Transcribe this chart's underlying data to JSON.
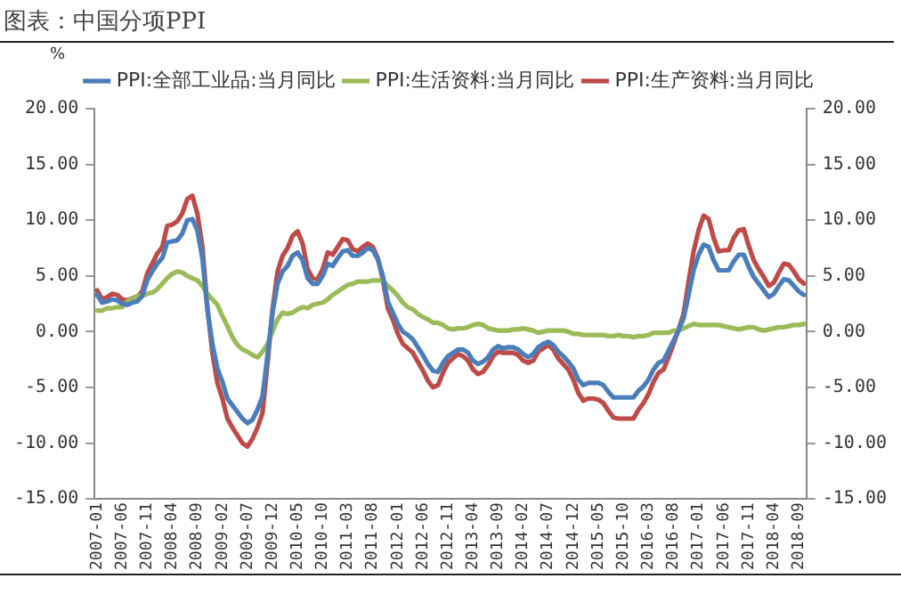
{
  "chart_data": {
    "type": "line",
    "title": "图表：中国分项PPI",
    "ylabel": "%",
    "categories": [
      "2007-01",
      null,
      null,
      null,
      null,
      "2007-06",
      null,
      null,
      null,
      null,
      "2007-11",
      null,
      null,
      null,
      null,
      "2008-04",
      null,
      null,
      null,
      null,
      "2008-09",
      null,
      null,
      null,
      null,
      "2009-02",
      null,
      null,
      null,
      null,
      "2009-07",
      null,
      null,
      null,
      null,
      "2009-12",
      null,
      null,
      null,
      null,
      "2010-05",
      null,
      null,
      null,
      null,
      "2010-10",
      null,
      null,
      null,
      null,
      "2011-03",
      null,
      null,
      null,
      null,
      "2011-08",
      null,
      null,
      null,
      null,
      "2012-01",
      null,
      null,
      null,
      null,
      "2012-06",
      null,
      null,
      null,
      null,
      "2012-11",
      null,
      null,
      null,
      null,
      "2013-04",
      null,
      null,
      null,
      null,
      "2013-09",
      null,
      null,
      null,
      null,
      "2014-02",
      null,
      null,
      null,
      null,
      "2014-07",
      null,
      null,
      null,
      null,
      "2014-12",
      null,
      null,
      null,
      null,
      "2015-05",
      null,
      null,
      null,
      null,
      "2015-10",
      null,
      null,
      null,
      null,
      "2016-03",
      null,
      null,
      null,
      null,
      "2016-08",
      null,
      null,
      null,
      null,
      "2017-01",
      null,
      null,
      null,
      null,
      "2017-06",
      null,
      null,
      null,
      null,
      "2017-11",
      null,
      null,
      null,
      null,
      "2018-04",
      null,
      null,
      null,
      null,
      "2018-09",
      null
    ],
    "series": [
      {
        "name": "PPI:全部工业品:当月同比",
        "color": "#4a7ebb",
        "values": [
          3.3,
          2.6,
          2.7,
          2.9,
          2.8,
          2.5,
          2.4,
          2.6,
          2.7,
          3.2,
          4.6,
          5.4,
          6.1,
          6.6,
          8.0,
          8.1,
          8.2,
          8.8,
          10.0,
          10.1,
          9.1,
          6.6,
          2.0,
          -1.1,
          -3.3,
          -4.5,
          -6.0,
          -6.6,
          -7.2,
          -7.8,
          -8.2,
          -7.9,
          -7.0,
          -5.8,
          -2.1,
          1.7,
          4.3,
          5.4,
          5.9,
          6.8,
          7.1,
          6.4,
          4.8,
          4.3,
          4.3,
          5.0,
          6.1,
          5.9,
          6.6,
          7.2,
          7.3,
          6.8,
          6.8,
          7.1,
          7.5,
          7.3,
          6.5,
          5.0,
          2.7,
          1.7,
          0.7,
          0.0,
          -0.3,
          -0.7,
          -1.4,
          -2.1,
          -2.9,
          -3.5,
          -3.6,
          -2.8,
          -2.2,
          -1.9,
          -1.6,
          -1.6,
          -1.9,
          -2.6,
          -2.9,
          -2.7,
          -2.3,
          -1.6,
          -1.3,
          -1.5,
          -1.4,
          -1.4,
          -1.6,
          -2.0,
          -2.3,
          -2.0,
          -1.4,
          -1.1,
          -0.9,
          -1.2,
          -1.8,
          -2.2,
          -2.7,
          -3.3,
          -4.3,
          -4.8,
          -4.6,
          -4.6,
          -4.6,
          -4.8,
          -5.4,
          -5.9,
          -5.9,
          -5.9,
          -5.9,
          -5.9,
          -5.3,
          -4.9,
          -4.3,
          -3.4,
          -2.8,
          -2.6,
          -1.7,
          -0.8,
          0.1,
          1.2,
          3.3,
          5.5,
          6.9,
          7.8,
          7.6,
          6.4,
          5.5,
          5.5,
          5.5,
          6.3,
          6.9,
          6.9,
          5.8,
          4.9,
          4.3,
          3.7,
          3.1,
          3.4,
          4.1,
          4.7,
          4.6,
          4.1,
          3.6,
          3.3
        ]
      },
      {
        "name": "PPI:生活资料:当月同比",
        "color": "#9bbb59",
        "values": [
          1.9,
          1.9,
          2.1,
          2.1,
          2.2,
          2.2,
          2.7,
          3.0,
          3.2,
          3.2,
          3.4,
          3.5,
          3.8,
          4.3,
          4.8,
          5.2,
          5.4,
          5.3,
          5.0,
          4.8,
          4.6,
          4.1,
          3.4,
          2.9,
          2.4,
          1.4,
          0.5,
          -0.5,
          -1.2,
          -1.6,
          -1.8,
          -2.1,
          -2.3,
          -1.8,
          -1.1,
          0.0,
          1.1,
          1.7,
          1.6,
          1.7,
          2.0,
          2.2,
          2.1,
          2.4,
          2.5,
          2.6,
          2.9,
          3.3,
          3.6,
          3.9,
          4.2,
          4.3,
          4.5,
          4.5,
          4.5,
          4.6,
          4.6,
          4.6,
          4.1,
          3.7,
          3.2,
          2.6,
          2.2,
          2.0,
          1.6,
          1.3,
          1.1,
          0.8,
          0.8,
          0.6,
          0.3,
          0.2,
          0.3,
          0.3,
          0.4,
          0.6,
          0.7,
          0.6,
          0.3,
          0.2,
          0.1,
          0.1,
          0.1,
          0.2,
          0.2,
          0.3,
          0.2,
          0.1,
          -0.1,
          0.0,
          0.1,
          0.1,
          0.1,
          0.1,
          0.0,
          -0.2,
          -0.2,
          -0.3,
          -0.3,
          -0.3,
          -0.3,
          -0.3,
          -0.4,
          -0.4,
          -0.3,
          -0.4,
          -0.4,
          -0.5,
          -0.4,
          -0.4,
          -0.3,
          -0.1,
          -0.1,
          -0.1,
          -0.1,
          0.1,
          0.1,
          0.3,
          0.5,
          0.7,
          0.6,
          0.6,
          0.6,
          0.6,
          0.6,
          0.5,
          0.4,
          0.3,
          0.2,
          0.3,
          0.4,
          0.4,
          0.2,
          0.1,
          0.2,
          0.3,
          0.4,
          0.4,
          0.5,
          0.6,
          0.6,
          0.7
        ]
      },
      {
        "name": "PPI:生产资料:当月同比",
        "color": "#be4b48",
        "values": [
          3.7,
          2.9,
          3.1,
          3.4,
          3.3,
          2.9,
          2.8,
          3.0,
          3.1,
          3.6,
          5.2,
          6.1,
          7.0,
          7.6,
          9.5,
          9.6,
          9.9,
          10.6,
          11.9,
          12.2,
          10.6,
          7.6,
          2.2,
          -1.9,
          -4.6,
          -6.0,
          -7.8,
          -8.6,
          -9.3,
          -10.0,
          -10.3,
          -9.6,
          -8.6,
          -7.3,
          -2.8,
          2.0,
          5.4,
          6.8,
          7.5,
          8.6,
          9.0,
          7.9,
          5.6,
          4.8,
          4.7,
          5.6,
          7.1,
          6.9,
          7.6,
          8.3,
          8.2,
          7.4,
          7.2,
          7.6,
          7.9,
          7.6,
          6.6,
          4.7,
          2.1,
          1.1,
          -0.2,
          -1.1,
          -1.5,
          -1.9,
          -2.7,
          -3.5,
          -4.4,
          -5.0,
          -4.8,
          -3.7,
          -2.8,
          -2.4,
          -2.0,
          -2.2,
          -2.6,
          -3.4,
          -3.8,
          -3.6,
          -3.0,
          -2.2,
          -1.8,
          -1.9,
          -1.9,
          -1.9,
          -2.1,
          -2.6,
          -2.8,
          -2.6,
          -1.8,
          -1.5,
          -1.2,
          -1.6,
          -2.4,
          -2.9,
          -3.4,
          -4.3,
          -5.5,
          -6.2,
          -6.0,
          -6.0,
          -6.1,
          -6.4,
          -7.1,
          -7.7,
          -7.8,
          -7.8,
          -7.8,
          -7.8,
          -7.0,
          -6.4,
          -5.6,
          -4.5,
          -3.7,
          -3.4,
          -2.3,
          -1.1,
          0.2,
          1.6,
          4.5,
          7.2,
          9.1,
          10.4,
          10.1,
          8.4,
          7.2,
          7.3,
          7.3,
          8.4,
          9.1,
          9.2,
          7.7,
          6.4,
          5.6,
          4.9,
          4.1,
          4.4,
          5.3,
          6.1,
          6.0,
          5.4,
          4.7,
          4.3
        ]
      }
    ],
    "ylim": [
      -15,
      20
    ],
    "yticks": [
      {
        "value": -15,
        "label": "-15.00"
      },
      {
        "value": -10,
        "label": "-10.00"
      },
      {
        "value": -5,
        "label": "-5.00"
      },
      {
        "value": 0,
        "label": "0.00"
      },
      {
        "value": 5,
        "label": "5.00"
      },
      {
        "value": 10,
        "label": "10.00"
      },
      {
        "value": 15,
        "label": "15.00"
      },
      {
        "value": 20,
        "label": "20.00"
      }
    ],
    "y2lim": [
      -15,
      20
    ],
    "y2ticks": [
      {
        "value": -15,
        "label": "-15.00"
      },
      {
        "value": -10,
        "label": "-10.00"
      },
      {
        "value": -5,
        "label": "-5.00"
      },
      {
        "value": 0,
        "label": "0.00"
      },
      {
        "value": 5,
        "label": "5.00"
      },
      {
        "value": 10,
        "label": "10.00"
      },
      {
        "value": 15,
        "label": "15.00"
      },
      {
        "value": 20,
        "label": "20.00"
      }
    ],
    "legend": "top",
    "marker": "none"
  }
}
